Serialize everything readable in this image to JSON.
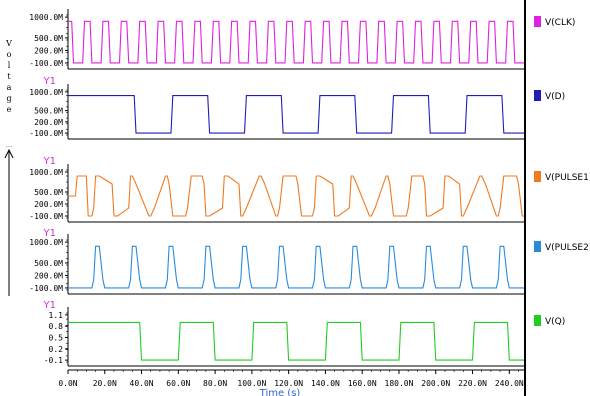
{
  "y_axis_label": "Voltage",
  "panel_tag": "Y1",
  "x_axis_label": "Time (s)",
  "chart_data": [
    {
      "type": "line",
      "panel": "clk",
      "series": [
        {
          "name": "V(CLK)",
          "color": "#e020e0"
        }
      ],
      "x": [
        0,
        2,
        3,
        8,
        9,
        12,
        13,
        18,
        19,
        22,
        23,
        28,
        29,
        32,
        33,
        38,
        39,
        42,
        43,
        48,
        49,
        52,
        53,
        58,
        59,
        62,
        63,
        68,
        69,
        72,
        73,
        78,
        79,
        82,
        83,
        88,
        89,
        92,
        93,
        98,
        99,
        102,
        103,
        108,
        109,
        112,
        113,
        118,
        119,
        122,
        123,
        128,
        129,
        132,
        133,
        138,
        139,
        142,
        143,
        148,
        149,
        152,
        153,
        158,
        159,
        162,
        163,
        168,
        169,
        172,
        173,
        178,
        179,
        182,
        183,
        188,
        189,
        192,
        193,
        198,
        199,
        202,
        203,
        208,
        209,
        212,
        213,
        218,
        219,
        222,
        223,
        228,
        229,
        232,
        233,
        238,
        239,
        242,
        243,
        248
      ],
      "y": [
        900,
        900,
        -100,
        -100,
        900,
        900,
        -100,
        -100,
        900,
        900,
        -100,
        -100,
        900,
        900,
        -100,
        -100,
        900,
        900,
        -100,
        -100,
        900,
        900,
        -100,
        -100,
        900,
        900,
        -100,
        -100,
        900,
        900,
        -100,
        -100,
        900,
        900,
        -100,
        -100,
        900,
        900,
        -100,
        -100,
        900,
        900,
        -100,
        -100,
        900,
        900,
        -100,
        -100,
        900,
        900,
        -100,
        -100,
        900,
        900,
        -100,
        -100,
        900,
        900,
        -100,
        -100,
        900,
        900,
        -100,
        -100,
        900,
        900,
        -100,
        -100,
        900,
        900,
        -100,
        -100,
        900,
        900,
        -100,
        -100,
        900,
        900,
        -100,
        -100,
        900,
        900,
        -100,
        -100,
        900,
        900,
        -100,
        -100,
        900,
        900,
        -100,
        -100,
        900,
        900,
        -100,
        -100,
        900,
        900,
        -100,
        -100
      ],
      "yticks": [
        "1000.0M",
        "500.0M",
        "200.0M",
        "-100.0M"
      ],
      "ylim": [
        -150,
        1050
      ]
    },
    {
      "type": "line",
      "panel": "d",
      "series": [
        {
          "name": "V(D)",
          "color": "#1f1fb8"
        }
      ],
      "x": [
        0,
        36,
        37,
        56,
        57,
        76,
        77,
        96,
        97,
        116,
        117,
        136,
        137,
        156,
        157,
        176,
        177,
        196,
        197,
        216,
        217,
        236,
        237,
        248
      ],
      "y": [
        900,
        900,
        -100,
        -100,
        900,
        900,
        -100,
        -100,
        900,
        900,
        -100,
        -100,
        900,
        900,
        -100,
        -100,
        900,
        900,
        -100,
        -100,
        900,
        900,
        -100,
        -100
      ],
      "yticks": [
        "1000.0M",
        "500.0M",
        "200.0M",
        "-100.0M"
      ],
      "ylim": [
        -150,
        1050
      ]
    },
    {
      "type": "line",
      "panel": "pulse1",
      "series": [
        {
          "name": "V(PULSE1)",
          "color": "#f07a20"
        }
      ],
      "x": [
        0,
        4,
        5,
        10,
        11,
        13,
        14,
        15,
        17,
        24,
        25,
        27,
        33,
        34,
        35,
        37,
        44,
        45,
        47,
        53,
        54,
        55,
        57,
        64,
        65,
        67,
        73,
        74,
        75,
        77,
        84,
        85,
        87,
        93,
        94,
        95,
        97,
        104,
        105,
        107,
        113,
        114,
        115,
        117,
        124,
        125,
        127,
        133,
        134,
        135,
        137,
        144,
        145,
        147,
        153,
        154,
        155,
        157,
        164,
        165,
        167,
        173,
        174,
        175,
        177,
        184,
        185,
        187,
        193,
        194,
        195,
        197,
        204,
        205,
        207,
        213,
        214,
        215,
        217,
        224,
        225,
        227,
        233,
        234,
        235,
        237,
        244,
        245,
        247,
        248
      ],
      "y": [
        400,
        400,
        900,
        900,
        -100,
        -100,
        100,
        900,
        900,
        700,
        -100,
        -100,
        100,
        900,
        900,
        700,
        -100,
        -100,
        100,
        900,
        900,
        700,
        -100,
        -100,
        100,
        900,
        900,
        700,
        -100,
        -100,
        100,
        900,
        900,
        700,
        -100,
        -100,
        100,
        900,
        900,
        700,
        -100,
        -100,
        100,
        900,
        900,
        700,
        -100,
        -100,
        100,
        900,
        900,
        700,
        -100,
        -100,
        100,
        900,
        900,
        700,
        -100,
        -100,
        100,
        900,
        900,
        700,
        -100,
        -100,
        100,
        900,
        900,
        700,
        -100,
        -100,
        100,
        900,
        900,
        700,
        -100,
        -100,
        100,
        900,
        900,
        700,
        -100,
        -100,
        100,
        900,
        900,
        700,
        -100,
        -100
      ],
      "yticks": [
        "1000.0M",
        "500.0M",
        "200.0M",
        "-100.0M"
      ],
      "ylim": [
        -150,
        1050
      ]
    },
    {
      "type": "line",
      "panel": "pulse2",
      "series": [
        {
          "name": "V(PULSE2)",
          "color": "#2a8adc"
        }
      ],
      "x": [
        0,
        13,
        14,
        15,
        17,
        19,
        20,
        33,
        34,
        35,
        37,
        39,
        40,
        53,
        54,
        55,
        57,
        59,
        60,
        73,
        74,
        75,
        77,
        79,
        80,
        93,
        94,
        95,
        97,
        99,
        100,
        113,
        114,
        115,
        117,
        119,
        120,
        133,
        134,
        135,
        137,
        139,
        140,
        153,
        154,
        155,
        157,
        159,
        160,
        173,
        174,
        175,
        177,
        179,
        180,
        193,
        194,
        195,
        197,
        199,
        200,
        213,
        214,
        215,
        217,
        219,
        220,
        233,
        234,
        235,
        237,
        239,
        240,
        248
      ],
      "y": [
        -100,
        -100,
        100,
        900,
        900,
        100,
        -100,
        -100,
        100,
        900,
        900,
        100,
        -100,
        -100,
        100,
        900,
        900,
        100,
        -100,
        -100,
        100,
        900,
        900,
        100,
        -100,
        -100,
        100,
        900,
        900,
        100,
        -100,
        -100,
        100,
        900,
        900,
        100,
        -100,
        -100,
        100,
        900,
        900,
        100,
        -100,
        -100,
        100,
        900,
        900,
        100,
        -100,
        -100,
        100,
        900,
        900,
        100,
        -100,
        -100,
        100,
        900,
        900,
        100,
        -100,
        -100,
        100,
        900,
        900,
        100,
        -100,
        -100,
        100,
        900,
        900,
        100,
        -100,
        -100
      ],
      "yticks": [
        "1000.0M",
        "500.0M",
        "200.0M",
        "-100.0M"
      ],
      "ylim": [
        -150,
        1050
      ]
    },
    {
      "type": "line",
      "panel": "q",
      "series": [
        {
          "name": "V(Q)",
          "color": "#22cc22"
        }
      ],
      "x": [
        0,
        39,
        40,
        60,
        61,
        79,
        80,
        100,
        101,
        119,
        120,
        140,
        141,
        159,
        160,
        180,
        181,
        199,
        200,
        220,
        221,
        239,
        240,
        248
      ],
      "y": [
        0.9,
        0.9,
        -0.1,
        -0.1,
        0.9,
        0.9,
        -0.1,
        -0.1,
        0.9,
        0.9,
        -0.1,
        -0.1,
        0.9,
        0.9,
        -0.1,
        -0.1,
        0.9,
        0.9,
        -0.1,
        -0.1,
        0.9,
        0.9,
        -0.1,
        -0.1
      ],
      "yticks": [
        "1.1",
        "0.8",
        "0.5",
        "0.2",
        "-0.1"
      ],
      "ylim": [
        -0.15,
        1.15
      ]
    }
  ],
  "x_ticks": [
    {
      "label": "0.0N",
      "value": 0
    },
    {
      "label": "20.0N",
      "value": 20
    },
    {
      "label": "40.0N",
      "value": 40
    },
    {
      "label": "60.0N",
      "value": 60
    },
    {
      "label": "80.0N",
      "value": 80
    },
    {
      "label": "100.0N",
      "value": 100
    },
    {
      "label": "120.0N",
      "value": 120
    },
    {
      "label": "140.0N",
      "value": 140
    },
    {
      "label": "160.0N",
      "value": 160
    },
    {
      "label": "180.0N",
      "value": 180
    },
    {
      "label": "200.0N",
      "value": 200
    },
    {
      "label": "220.0N",
      "value": 220
    },
    {
      "label": "240.0N",
      "value": 240
    }
  ],
  "x_range": [
    0,
    248
  ]
}
